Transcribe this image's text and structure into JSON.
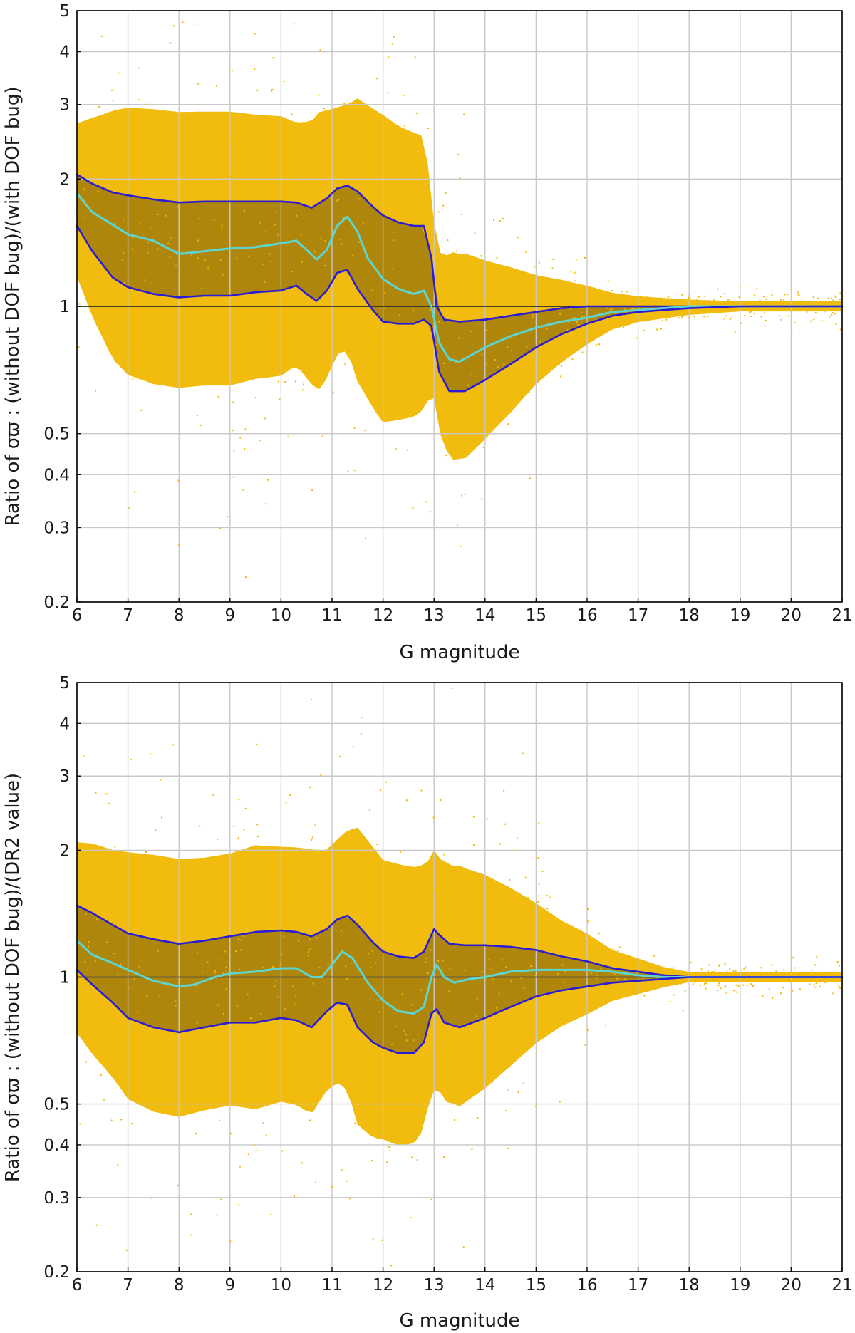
{
  "colors": {
    "points": "#f0b800",
    "density_core": "#5a4408",
    "percentile_band": "#2a1cd6",
    "median": "#5cd6d2",
    "reference": "#111111",
    "grid": "#c8c8c8"
  },
  "chart_data": [
    {
      "type": "scatter",
      "id": "top",
      "xlabel": "G magnitude",
      "ylabel": "Ratio of σϖ : (without DOF bug)/(with DOF bug)",
      "xlim": [
        6,
        21
      ],
      "ylim": [
        0.2,
        5
      ],
      "yscale": "log",
      "xticks": [
        6,
        7,
        8,
        9,
        10,
        11,
        12,
        13,
        14,
        15,
        16,
        17,
        18,
        19,
        20,
        21
      ],
      "yticks": [
        0.2,
        0.3,
        0.4,
        0.5,
        1,
        2,
        3,
        4,
        5
      ],
      "reference_line": 1,
      "series": [
        {
          "name": "upper percentile",
          "role": "band",
          "x": [
            6,
            6.3,
            6.7,
            7,
            7.5,
            8,
            8.5,
            9,
            9.5,
            10,
            10.3,
            10.6,
            10.9,
            11.1,
            11.3,
            11.5,
            11.8,
            12,
            12.3,
            12.6,
            12.8,
            12.95,
            13.05,
            13.2,
            13.5,
            14,
            14.5,
            15,
            15.5,
            16,
            16.5,
            17,
            17.5,
            18,
            19,
            20,
            21
          ],
          "values": [
            2.05,
            1.95,
            1.86,
            1.83,
            1.79,
            1.76,
            1.77,
            1.77,
            1.77,
            1.77,
            1.76,
            1.71,
            1.8,
            1.9,
            1.93,
            1.87,
            1.72,
            1.64,
            1.58,
            1.55,
            1.55,
            1.3,
            1.0,
            0.93,
            0.92,
            0.93,
            0.95,
            0.97,
            0.99,
            1.0,
            1.0,
            1.0,
            1.0,
            1.0,
            1.0,
            1.0,
            1.0
          ]
        },
        {
          "name": "median",
          "role": "median",
          "x": [
            6,
            6.3,
            6.7,
            7,
            7.5,
            8,
            8.5,
            9,
            9.5,
            10,
            10.3,
            10.5,
            10.7,
            10.9,
            11.1,
            11.3,
            11.5,
            11.7,
            12,
            12.3,
            12.6,
            12.8,
            12.95,
            13.1,
            13.3,
            13.5,
            14,
            14.5,
            15,
            15.5,
            16,
            16.5,
            17,
            17.5,
            18,
            19,
            20,
            21
          ],
          "values": [
            1.85,
            1.67,
            1.56,
            1.48,
            1.43,
            1.33,
            1.35,
            1.37,
            1.38,
            1.41,
            1.43,
            1.36,
            1.29,
            1.36,
            1.55,
            1.63,
            1.5,
            1.3,
            1.16,
            1.1,
            1.07,
            1.09,
            1.0,
            0.82,
            0.75,
            0.74,
            0.8,
            0.85,
            0.89,
            0.92,
            0.94,
            0.97,
            0.98,
            0.99,
            1.0,
            1.0,
            1.0,
            1.0
          ]
        },
        {
          "name": "lower percentile",
          "role": "band",
          "x": [
            6,
            6.3,
            6.7,
            7,
            7.5,
            8,
            8.5,
            9,
            9.5,
            10,
            10.3,
            10.5,
            10.7,
            10.9,
            11.1,
            11.3,
            11.5,
            11.8,
            12,
            12.3,
            12.6,
            12.8,
            12.95,
            13.1,
            13.3,
            13.6,
            14,
            14.5,
            15,
            15.5,
            16,
            16.5,
            17,
            17.5,
            18,
            19,
            20,
            21
          ],
          "values": [
            1.55,
            1.35,
            1.17,
            1.11,
            1.07,
            1.05,
            1.06,
            1.06,
            1.08,
            1.09,
            1.12,
            1.07,
            1.03,
            1.09,
            1.2,
            1.22,
            1.1,
            0.98,
            0.92,
            0.91,
            0.91,
            0.93,
            0.9,
            0.7,
            0.63,
            0.63,
            0.67,
            0.73,
            0.8,
            0.86,
            0.91,
            0.95,
            0.97,
            0.98,
            0.99,
            1.0,
            1.0,
            1.0
          ]
        }
      ]
    },
    {
      "type": "scatter",
      "id": "bottom",
      "xlabel": "G magnitude",
      "ylabel": "Ratio of σϖ : (without DOF bug)/(DR2 value)",
      "xlim": [
        6,
        21
      ],
      "ylim": [
        0.2,
        5
      ],
      "yscale": "log",
      "xticks": [
        6,
        7,
        8,
        9,
        10,
        11,
        12,
        13,
        14,
        15,
        16,
        17,
        18,
        19,
        20,
        21
      ],
      "yticks": [
        0.2,
        0.3,
        0.4,
        0.5,
        1,
        2,
        3,
        4,
        5
      ],
      "reference_line": 1,
      "series": [
        {
          "name": "upper percentile",
          "role": "band",
          "x": [
            6,
            6.3,
            6.7,
            7,
            7.5,
            8,
            8.5,
            9,
            9.5,
            10,
            10.3,
            10.6,
            10.9,
            11.1,
            11.3,
            11.5,
            11.8,
            12,
            12.3,
            12.6,
            12.8,
            13,
            13.1,
            13.3,
            13.6,
            14,
            14.5,
            15,
            15.5,
            16,
            16.5,
            17,
            17.5,
            18,
            19,
            20,
            21
          ],
          "values": [
            1.48,
            1.42,
            1.33,
            1.27,
            1.23,
            1.2,
            1.22,
            1.25,
            1.28,
            1.29,
            1.28,
            1.25,
            1.3,
            1.37,
            1.4,
            1.33,
            1.21,
            1.15,
            1.12,
            1.11,
            1.15,
            1.3,
            1.26,
            1.2,
            1.19,
            1.19,
            1.18,
            1.16,
            1.12,
            1.09,
            1.05,
            1.03,
            1.01,
            1.0,
            1.0,
            1.0,
            1.0
          ]
        },
        {
          "name": "median",
          "role": "median",
          "x": [
            6,
            6.3,
            6.7,
            7,
            7.5,
            8,
            8.3,
            8.7,
            9,
            9.5,
            10,
            10.3,
            10.6,
            10.8,
            11,
            11.2,
            11.4,
            11.7,
            12,
            12.3,
            12.6,
            12.8,
            12.95,
            13.05,
            13.2,
            13.4,
            13.7,
            14,
            14.5,
            15,
            15.5,
            16,
            16.5,
            17,
            17.5,
            18,
            19,
            20,
            21
          ],
          "values": [
            1.22,
            1.13,
            1.08,
            1.04,
            0.98,
            0.95,
            0.96,
            1.0,
            1.02,
            1.03,
            1.05,
            1.05,
            1.0,
            1.0,
            1.07,
            1.15,
            1.11,
            0.97,
            0.88,
            0.83,
            0.82,
            0.85,
            1.0,
            1.07,
            1.0,
            0.97,
            0.99,
            1.0,
            1.03,
            1.04,
            1.04,
            1.04,
            1.03,
            1.01,
            1.0,
            1.0,
            1.0,
            1.0,
            1.0
          ]
        },
        {
          "name": "lower percentile",
          "role": "band",
          "x": [
            6,
            6.3,
            6.7,
            7,
            7.5,
            8,
            8.5,
            9,
            9.5,
            10,
            10.3,
            10.6,
            10.9,
            11.1,
            11.3,
            11.5,
            11.8,
            12,
            12.3,
            12.6,
            12.8,
            12.95,
            13.05,
            13.2,
            13.5,
            14,
            14.5,
            15,
            15.5,
            16,
            16.5,
            17,
            17.5,
            18,
            19,
            20,
            21
          ],
          "values": [
            1.04,
            0.96,
            0.87,
            0.8,
            0.76,
            0.74,
            0.76,
            0.78,
            0.78,
            0.8,
            0.79,
            0.76,
            0.83,
            0.87,
            0.86,
            0.76,
            0.7,
            0.68,
            0.66,
            0.66,
            0.7,
            0.82,
            0.84,
            0.78,
            0.76,
            0.8,
            0.85,
            0.9,
            0.93,
            0.95,
            0.97,
            0.98,
            0.99,
            1.0,
            1.0,
            1.0,
            1.0
          ]
        }
      ]
    }
  ]
}
